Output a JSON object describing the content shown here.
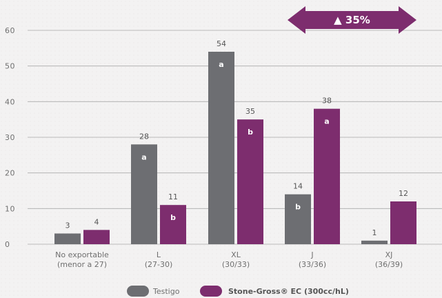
{
  "chart_data": {
    "type": "bar",
    "categories": [
      [
        "No exportable",
        "(menor a 27)"
      ],
      [
        "L",
        "(27-30)"
      ],
      [
        "XL",
        "(30/33)"
      ],
      [
        "J",
        "(33/36)"
      ],
      [
        "XJ",
        "(36/39)"
      ]
    ],
    "series": [
      {
        "name": "Testigo",
        "color": "#6d6e72",
        "values": [
          3,
          28,
          54,
          14,
          1
        ],
        "labels": [
          "3",
          "28",
          "54",
          "14",
          "1"
        ],
        "significance": [
          "",
          "a",
          "a",
          "b",
          ""
        ]
      },
      {
        "name": "Stone-Gross® EC (300cc/hL)",
        "color": "#7d2d6e",
        "values": [
          4,
          11,
          35,
          38,
          12
        ],
        "labels": [
          "4",
          "11",
          "35",
          "38",
          "12"
        ],
        "significance": [
          "",
          "b",
          "b",
          "a",
          ""
        ]
      }
    ],
    "ylim": [
      0,
      60
    ],
    "yticks": [
      "0",
      "10",
      "20",
      "30",
      "40",
      "50",
      "60"
    ],
    "grid": true,
    "legend_position": "bottom",
    "annotation": {
      "text": "▲ 35%",
      "color": "#7d2d6e",
      "spans_categories": [
        "J",
        "XJ"
      ]
    }
  }
}
